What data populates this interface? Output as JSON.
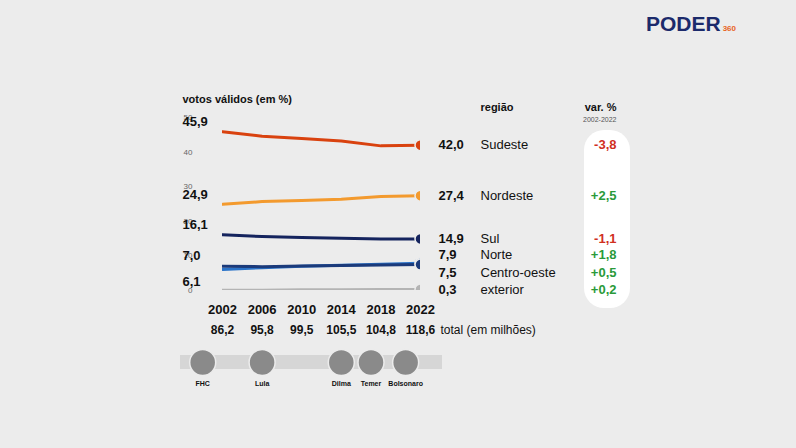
{
  "chart_data": {
    "type": "line",
    "ylabel": "votos válidos (em %)",
    "x": [
      2002,
      2006,
      2010,
      2014,
      2018,
      2022
    ],
    "xlim": [
      2002,
      2022
    ],
    "xticks": [
      2002,
      2006,
      2010,
      2014,
      2018,
      2022
    ],
    "ylim": [
      0,
      50
    ],
    "yticks": [
      0,
      10,
      20,
      30,
      40,
      50
    ],
    "grid": false,
    "legend_header": "região",
    "change_header": "var. %",
    "change_period": "2002-2022",
    "totals": [
      86.2,
      95.8,
      99.5,
      105.5,
      104.8,
      118.6
    ],
    "totals_labels": [
      "86,2",
      "95,8",
      "99,5",
      "105,5",
      "104,8",
      "118,6"
    ],
    "totals_label": "total (em milhões)",
    "presidents": [
      {
        "name": "FHC",
        "x": 2000
      },
      {
        "name": "Lula",
        "x": 2006
      },
      {
        "name": "Dilma",
        "x": 2014
      },
      {
        "name": "Temer",
        "x": 2017
      },
      {
        "name": "Bolsonaro",
        "x": 2020.5
      }
    ],
    "logo": "PODER",
    "logo_sub": "360",
    "series": [
      {
        "name": "Sudeste",
        "color": "#d9420f",
        "values": [
          45.9,
          44.6,
          43.9,
          43.2,
          41.8,
          42.0
        ],
        "value_labels": [
          "45,9",
          null,
          null,
          null,
          null,
          "42,0"
        ],
        "change": -3.8,
        "change_label": "-3,8"
      },
      {
        "name": "Nordeste",
        "color": "#f39a2e",
        "values": [
          24.9,
          25.7,
          26.0,
          26.4,
          27.2,
          27.4
        ],
        "value_labels": [
          "24,9",
          null,
          null,
          null,
          null,
          "27,4"
        ],
        "change": 2.5,
        "change_label": "+2,5"
      },
      {
        "name": "Sul",
        "color": "#15245e",
        "values": [
          16.1,
          15.6,
          15.3,
          15.1,
          14.9,
          14.9
        ],
        "value_labels": [
          "16,1",
          null,
          null,
          null,
          null,
          "14,9"
        ],
        "change": -1.1,
        "change_label": "-1,1"
      },
      {
        "name": "Norte",
        "color": "#2a73c8",
        "values": [
          6.1,
          6.6,
          7.0,
          7.3,
          7.6,
          7.9
        ],
        "value_labels": [
          "6,1",
          null,
          null,
          null,
          null,
          "7,9"
        ],
        "change": 1.8,
        "change_label": "+1,8"
      },
      {
        "name": "Centro-oeste",
        "color": "#1b3a7a",
        "values": [
          7.0,
          6.9,
          7.1,
          7.2,
          7.4,
          7.5
        ],
        "value_labels": [
          "7,0",
          null,
          null,
          null,
          null,
          "7,5"
        ],
        "change": 0.5,
        "change_label": "+0,5"
      },
      {
        "name": "exterior",
        "color": "#b4b4b4",
        "values": [
          0.1,
          0.1,
          0.2,
          0.2,
          0.3,
          0.3
        ],
        "value_labels": [
          null,
          null,
          null,
          null,
          null,
          "0,3"
        ],
        "change": 0.2,
        "change_label": "+0,2"
      }
    ]
  }
}
